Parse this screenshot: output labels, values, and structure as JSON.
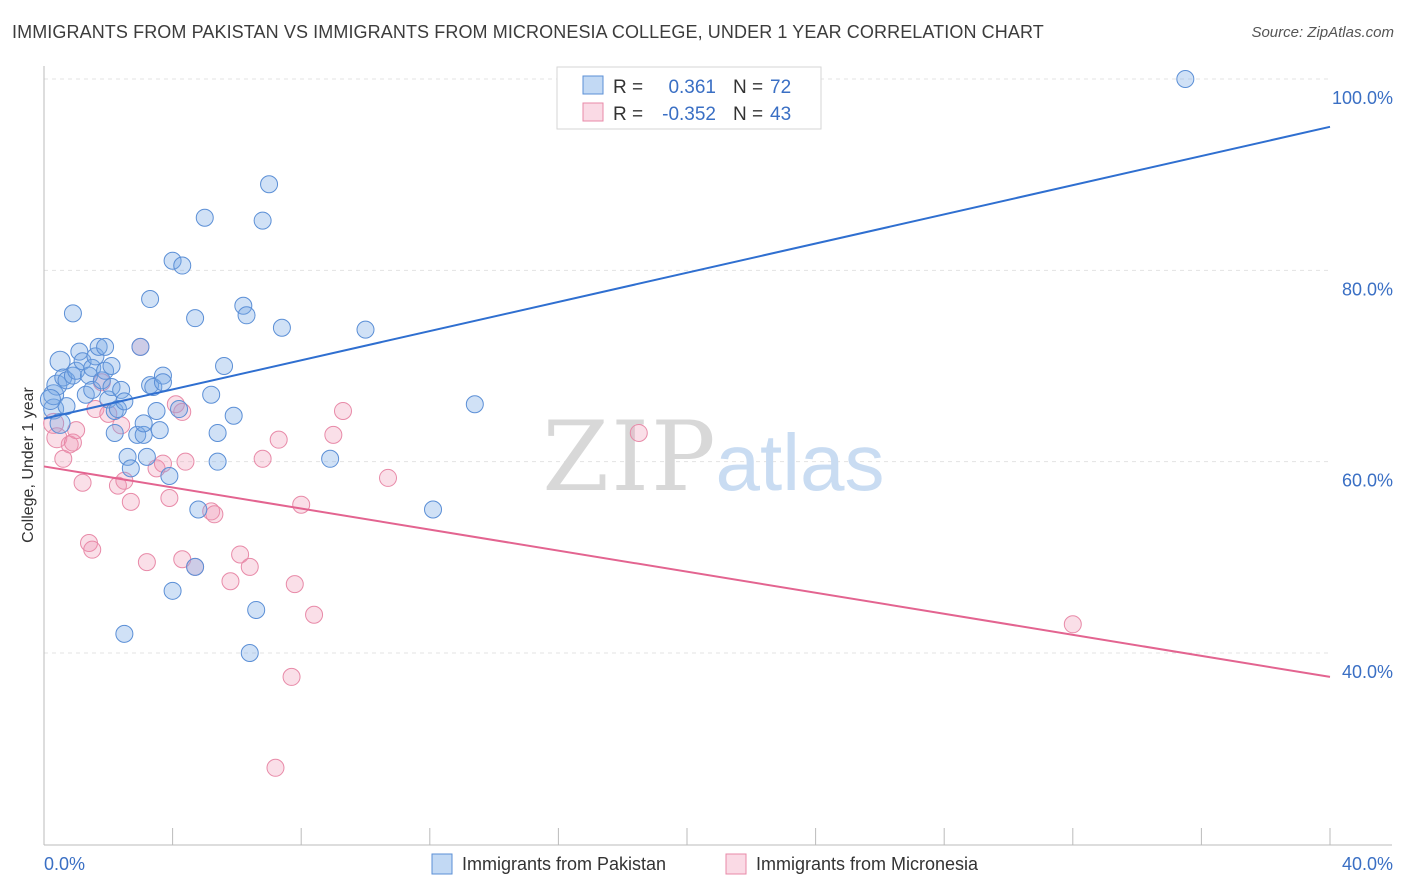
{
  "title": "IMMIGRANTS FROM PAKISTAN VS IMMIGRANTS FROM MICRONESIA COLLEGE, UNDER 1 YEAR CORRELATION CHART",
  "source": "Source: ZipAtlas.com",
  "watermark": {
    "zip": "ZIP",
    "atlas": "atlas"
  },
  "colors": {
    "blue_fill": "rgba(120,170,230,0.35)",
    "blue_stroke": "#5b8fd6",
    "blue_line": "#2f6fd0",
    "pink_fill": "rgba(240,150,180,0.30)",
    "pink_stroke": "#e88aa8",
    "pink_line": "#e36490",
    "axis_text": "#3a6fc4"
  },
  "legend": {
    "r_label": "R =",
    "n_label": "N =",
    "rows": [
      {
        "series": "pakistan",
        "r": "0.361",
        "n": "72"
      },
      {
        "series": "micronesia",
        "r": "-0.352",
        "n": "43"
      }
    ]
  },
  "chart_data": {
    "type": "scatter",
    "ylabel": "College, Under 1 year",
    "x_tick_labels": [
      "0.0%",
      "40.0%"
    ],
    "y_tick_labels": [
      "100.0%",
      "80.0%",
      "60.0%",
      "40.0%"
    ],
    "xlim": [
      0,
      40
    ],
    "ylim": [
      20,
      102
    ],
    "y_ticks": [
      100,
      80,
      60,
      40
    ],
    "grid": "horizontal dashed",
    "legend_position": "top-center",
    "series": [
      {
        "name": "Immigrants from Pakistan",
        "key": "pakistan",
        "trend": {
          "x": [
            0,
            40
          ],
          "y": [
            64.5,
            95.0
          ]
        },
        "points": [
          [
            0.3,
            65.5
          ],
          [
            0.3,
            67
          ],
          [
            0.4,
            68
          ],
          [
            0.5,
            70.5
          ],
          [
            0.5,
            64
          ],
          [
            0.6,
            68.8
          ],
          [
            0.7,
            65.8
          ],
          [
            0.7,
            68.5
          ],
          [
            0.9,
            75.5
          ],
          [
            0.9,
            69
          ],
          [
            1.0,
            69.5
          ],
          [
            1.1,
            71.5
          ],
          [
            1.2,
            70.5
          ],
          [
            1.3,
            67
          ],
          [
            1.4,
            69
          ],
          [
            1.5,
            69.8
          ],
          [
            1.5,
            67.5
          ],
          [
            1.6,
            71
          ],
          [
            1.7,
            72
          ],
          [
            1.8,
            68.5
          ],
          [
            1.9,
            69.5
          ],
          [
            1.9,
            72
          ],
          [
            2.0,
            66.5
          ],
          [
            2.1,
            67.8
          ],
          [
            2.1,
            70
          ],
          [
            2.2,
            65.3
          ],
          [
            2.2,
            63
          ],
          [
            2.3,
            65.5
          ],
          [
            2.4,
            67.5
          ],
          [
            2.5,
            66.3
          ],
          [
            2.6,
            60.5
          ],
          [
            2.7,
            59.3
          ],
          [
            2.9,
            62.8
          ],
          [
            3.0,
            72
          ],
          [
            3.1,
            62.8
          ],
          [
            3.1,
            64
          ],
          [
            3.2,
            60.5
          ],
          [
            3.3,
            68
          ],
          [
            3.3,
            77
          ],
          [
            3.4,
            67.8
          ],
          [
            3.5,
            65.3
          ],
          [
            3.6,
            63.3
          ],
          [
            3.7,
            69
          ],
          [
            3.7,
            68.3
          ],
          [
            3.9,
            58.5
          ],
          [
            4.0,
            81
          ],
          [
            4.0,
            46.5
          ],
          [
            4.2,
            65.5
          ],
          [
            4.3,
            80.5
          ],
          [
            4.7,
            75
          ],
          [
            4.7,
            49
          ],
          [
            4.8,
            55
          ],
          [
            5.0,
            85.5
          ],
          [
            5.2,
            67
          ],
          [
            5.4,
            63
          ],
          [
            5.4,
            60
          ],
          [
            5.6,
            70
          ],
          [
            5.9,
            64.8
          ],
          [
            6.2,
            76.3
          ],
          [
            6.3,
            75.3
          ],
          [
            6.4,
            40
          ],
          [
            6.6,
            44.5
          ],
          [
            6.8,
            85.2
          ],
          [
            7.0,
            89
          ],
          [
            7.4,
            74
          ],
          [
            8.9,
            60.3
          ],
          [
            10.0,
            73.8
          ],
          [
            12.1,
            55
          ],
          [
            13.4,
            66
          ],
          [
            35.5,
            100
          ],
          [
            2.5,
            42
          ],
          [
            0.2,
            66.5
          ]
        ]
      },
      {
        "name": "Immigrants from Micronesia",
        "key": "micronesia",
        "trend": {
          "x": [
            0,
            40
          ],
          "y": [
            59.5,
            37.5
          ]
        },
        "points": [
          [
            0.3,
            64
          ],
          [
            0.4,
            62.5
          ],
          [
            0.6,
            60.3
          ],
          [
            0.8,
            61.8
          ],
          [
            0.9,
            62
          ],
          [
            1.0,
            63.3
          ],
          [
            1.2,
            57.8
          ],
          [
            1.4,
            51.5
          ],
          [
            1.5,
            50.8
          ],
          [
            1.6,
            65.5
          ],
          [
            1.8,
            68.3
          ],
          [
            2.0,
            65
          ],
          [
            2.3,
            57.5
          ],
          [
            2.4,
            63.8
          ],
          [
            2.5,
            58
          ],
          [
            2.7,
            55.8
          ],
          [
            3.0,
            72
          ],
          [
            3.2,
            49.5
          ],
          [
            3.5,
            59.3
          ],
          [
            3.7,
            59.8
          ],
          [
            3.9,
            56.2
          ],
          [
            4.1,
            66
          ],
          [
            4.3,
            65.2
          ],
          [
            4.3,
            49.8
          ],
          [
            4.4,
            60
          ],
          [
            4.7,
            49
          ],
          [
            5.2,
            54.8
          ],
          [
            5.3,
            54.5
          ],
          [
            5.8,
            47.5
          ],
          [
            6.1,
            50.3
          ],
          [
            6.4,
            49
          ],
          [
            6.8,
            60.3
          ],
          [
            7.3,
            62.3
          ],
          [
            7.7,
            37.5
          ],
          [
            7.8,
            47.2
          ],
          [
            8.0,
            55.5
          ],
          [
            8.4,
            44
          ],
          [
            9.0,
            62.8
          ],
          [
            9.3,
            65.3
          ],
          [
            10.7,
            58.3
          ],
          [
            18.5,
            63
          ],
          [
            32.0,
            43
          ],
          [
            7.2,
            28
          ]
        ]
      }
    ]
  },
  "bottom_legend": [
    {
      "key": "pakistan",
      "label": "Immigrants from Pakistan"
    },
    {
      "key": "micronesia",
      "label": "Immigrants from Micronesia"
    }
  ]
}
